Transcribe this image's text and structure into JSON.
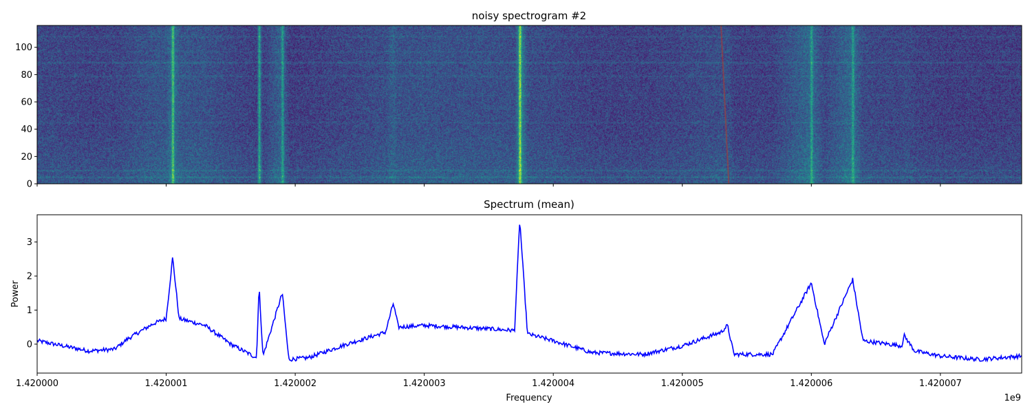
{
  "colors": {
    "line": "#0000ff",
    "rfi_overlay": "#b03a30",
    "colormap": "viridis"
  },
  "chart_data": [
    {
      "type": "heatmap",
      "title": "noisy spectrogram #2",
      "xlim": [
        1420000000.0,
        1420007630.0
      ],
      "ylim": [
        0,
        116
      ],
      "yticks": [
        0,
        20,
        40,
        60,
        80,
        100
      ],
      "ytick_labels": [
        "0",
        "20",
        "40",
        "60",
        "80",
        "100"
      ],
      "x_tick_labels_shown": false,
      "vertical_lines": [
        {
          "x": 1420001050.0,
          "strength": 0.55
        },
        {
          "x": 1420001720.0,
          "strength": 0.45
        },
        {
          "x": 1420001900.0,
          "strength": 0.4
        },
        {
          "x": 1420003740.0,
          "strength": 0.7
        },
        {
          "x": 1420006000.0,
          "strength": 0.4
        },
        {
          "x": 1420006320.0,
          "strength": 0.4
        }
      ],
      "horizontal_bands": [
        {
          "y": 5,
          "strength": 0.3
        },
        {
          "y": 10,
          "strength": 0.25
        },
        {
          "y": 45,
          "strength": 0.15
        },
        {
          "y": 65,
          "strength": 0.1
        },
        {
          "y": 79,
          "strength": 0.2
        },
        {
          "y": 89,
          "strength": 0.3
        },
        {
          "y": 97,
          "strength": 0.15
        },
        {
          "y": 108,
          "strength": 0.2
        }
      ],
      "drifting_line": {
        "x_start": 1420005300.0,
        "x_end": 1420005360.0
      }
    },
    {
      "type": "line",
      "title": "Spectrum (mean)",
      "xlabel": "Frequency",
      "ylabel": "Power",
      "x_offset_label": "1e9",
      "xlim": [
        1420000000.0,
        1420007630.0
      ],
      "ylim": [
        -0.85,
        3.8
      ],
      "xticks": [
        1420000000.0,
        1420001000.0,
        1420002000.0,
        1420003000.0,
        1420004000.0,
        1420005000.0,
        1420006000.0,
        1420007000.0
      ],
      "xtick_labels": [
        "1.420000",
        "1.420001",
        "1.420002",
        "1.420003",
        "1.420004",
        "1.420005",
        "1.420006",
        "1.420007"
      ],
      "yticks": [
        0,
        1,
        2,
        3
      ],
      "ytick_labels": [
        "0",
        "1",
        "2",
        "3"
      ],
      "series": [
        {
          "x": [
            1420000000.0,
            1420000200.0,
            1420000400.0,
            1420000600.0,
            1420000700.0,
            1420000900.0,
            1420001000.0,
            1420001050.0,
            1420001100.0,
            1420001300.0,
            1420001500.0,
            1420001700.0,
            1420001720.0,
            1420001750.0,
            1420001900.0,
            1420001950.0,
            1420002100.0,
            1420002400.0,
            1420002700.0,
            1420002760.0,
            1420002800.0,
            1420003000.0,
            1420003500.0,
            1420003700.0,
            1420003740.0,
            1420003800.0,
            1420004000.0,
            1420004300.0,
            1420004700.0,
            1420005000.0,
            1420005300.0,
            1420005350.0,
            1420005400.0,
            1420005700.0,
            1420006000.0,
            1420006100.0,
            1420006320.0,
            1420006400.0,
            1420006700.0,
            1420006720.0,
            1420006800.0,
            1420007000.0,
            1420007300.0,
            1420007630.0
          ],
          "y": [
            0.1,
            -0.05,
            -0.2,
            -0.15,
            0.15,
            0.6,
            0.75,
            2.55,
            0.75,
            0.55,
            0.0,
            -0.4,
            1.7,
            -0.35,
            1.5,
            -0.45,
            -0.4,
            0.0,
            0.35,
            1.2,
            0.5,
            0.55,
            0.45,
            0.4,
            3.65,
            0.3,
            0.1,
            -0.25,
            -0.3,
            -0.05,
            0.35,
            0.55,
            -0.3,
            -0.3,
            1.8,
            0.0,
            1.9,
            0.1,
            -0.05,
            0.25,
            -0.2,
            -0.35,
            -0.45,
            -0.35
          ]
        }
      ]
    }
  ]
}
